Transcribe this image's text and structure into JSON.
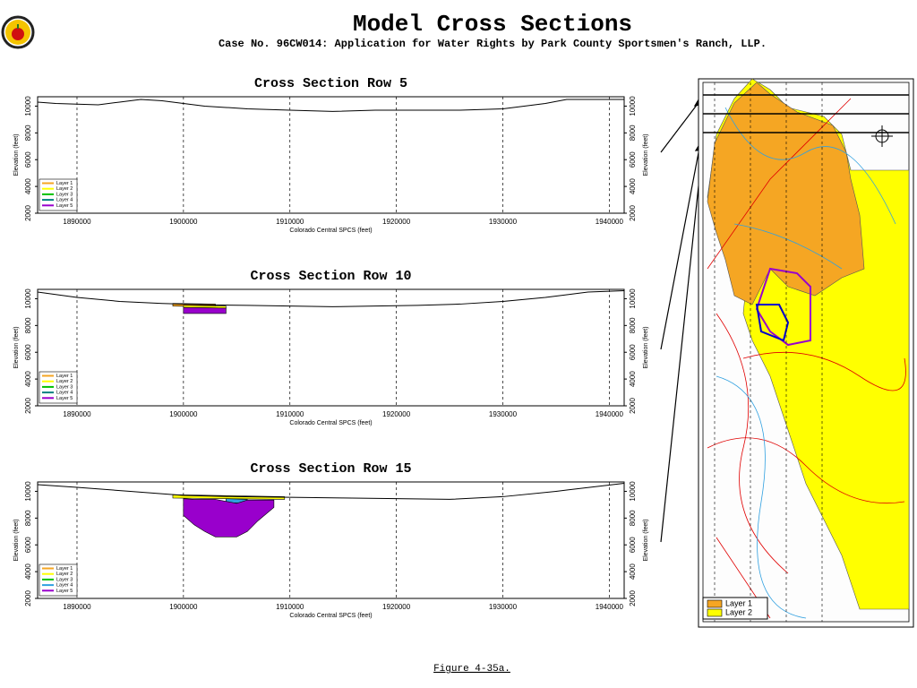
{
  "header": {
    "title": "Model Cross Sections",
    "subtitle": "Case No. 96CW014: Application for Water Rights by Park County Sportsmen's Ranch, LLP."
  },
  "footer": "Figure 4-35a.",
  "map": {
    "legend": [
      {
        "name": "Layer 1",
        "color": "#f5a623"
      },
      {
        "name": "Layer 2",
        "color": "#ffff00"
      }
    ]
  },
  "chart_data": [
    {
      "type": "area",
      "title": "Cross Section Row 5",
      "xlabel": "Colorado Central SPCS (feet)",
      "ylabel": "Elevation (feet)",
      "xlim": [
        1886300,
        1941400
      ],
      "ylim": [
        2000,
        10700
      ],
      "xticks": [
        1890000,
        1900000,
        1910000,
        1920000,
        1930000,
        1940000
      ],
      "yticks": [
        2000,
        4000,
        6000,
        8000,
        10000
      ],
      "grid": true,
      "surface": {
        "x": [
          1886300,
          1888000,
          1892000,
          1894000,
          1896000,
          1898000,
          1900000,
          1902000,
          1904000,
          1906000,
          1910000,
          1914000,
          1918000,
          1922000,
          1926000,
          1930000,
          1934000,
          1936000,
          1941400
        ],
        "values": [
          10300,
          10200,
          10100,
          10300,
          10500,
          10400,
          10200,
          10000,
          9900,
          9800,
          9700,
          9600,
          9700,
          9700,
          9700,
          9800,
          10200,
          10500,
          10500
        ]
      },
      "series": [
        {
          "name": "Layer 1",
          "color": "#f5a623"
        },
        {
          "name": "Layer 2",
          "color": "#ffff00"
        },
        {
          "name": "Layer 3",
          "color": "#00c000"
        },
        {
          "name": "Layer 4",
          "color": "#008080"
        },
        {
          "name": "Layer 5",
          "color": "#9900cc"
        }
      ]
    },
    {
      "type": "area",
      "title": "Cross Section Row 10",
      "xlabel": "Colorado Central SPCS (feet)",
      "ylabel": "Elevation (feet)",
      "xlim": [
        1886300,
        1941400
      ],
      "ylim": [
        2000,
        10700
      ],
      "xticks": [
        1890000,
        1900000,
        1910000,
        1920000,
        1930000,
        1940000
      ],
      "yticks": [
        2000,
        4000,
        6000,
        8000,
        10000
      ],
      "grid": true,
      "surface": {
        "x": [
          1886300,
          1890000,
          1894000,
          1898000,
          1902000,
          1906000,
          1910000,
          1914000,
          1918000,
          1922000,
          1926000,
          1930000,
          1934000,
          1938000,
          1941400
        ],
        "values": [
          10500,
          10100,
          9800,
          9650,
          9550,
          9500,
          9450,
          9400,
          9450,
          9500,
          9600,
          9800,
          10100,
          10500,
          10600
        ]
      },
      "series": [
        {
          "name": "Layer 1",
          "color": "#f5a623",
          "x": [
            1899000,
            1903000
          ],
          "top": [
            9650,
            9600
          ],
          "bottom": [
            9450,
            9400
          ]
        },
        {
          "name": "Layer 2",
          "color": "#ffff00",
          "x": [
            1900000,
            1904000
          ],
          "top": [
            9500,
            9450
          ],
          "bottom": [
            9350,
            9300
          ]
        },
        {
          "name": "Layer 3",
          "color": "#00c000"
        },
        {
          "name": "Layer 4",
          "color": "#008080"
        },
        {
          "name": "Layer 5",
          "color": "#9900cc",
          "x": [
            1900000,
            1904000
          ],
          "top": [
            9350,
            9300
          ],
          "bottom": [
            8900,
            8900
          ]
        }
      ]
    },
    {
      "type": "area",
      "title": "Cross Section Row 15",
      "xlabel": "Colorado Central SPCS (feet)",
      "ylabel": "Elevation (feet)",
      "xlim": [
        1886300,
        1941400
      ],
      "ylim": [
        2000,
        10700
      ],
      "xticks": [
        1890000,
        1900000,
        1910000,
        1920000,
        1930000,
        1940000
      ],
      "yticks": [
        2000,
        4000,
        6000,
        8000,
        10000
      ],
      "grid": true,
      "surface": {
        "x": [
          1886300,
          1890000,
          1895000,
          1900000,
          1905000,
          1910000,
          1915000,
          1920000,
          1925000,
          1930000,
          1935000,
          1941400
        ],
        "values": [
          10500,
          10300,
          10000,
          9700,
          9600,
          9550,
          9500,
          9450,
          9400,
          9600,
          10000,
          10600
        ]
      },
      "series": [
        {
          "name": "Layer 1",
          "color": "#f5a623"
        },
        {
          "name": "Layer 2",
          "color": "#ffff00",
          "x": [
            1899000,
            1909500
          ],
          "top": [
            9750,
            9600
          ],
          "bottom": [
            9500,
            9400
          ]
        },
        {
          "name": "Layer 3",
          "color": "#00c000"
        },
        {
          "name": "Layer 4",
          "color": "#30a0e0",
          "x": [
            1904000,
            1906000
          ],
          "top": [
            9450,
            9400
          ],
          "bottom": [
            9150,
            9100
          ]
        },
        {
          "name": "Layer 5",
          "color": "#9900cc",
          "x": [
            1900000,
            1901000,
            1902000,
            1903000,
            1905000,
            1906000,
            1907000,
            1908500
          ],
          "top": [
            9450,
            9400,
            9400,
            9400,
            9100,
            9350,
            9350,
            9350
          ],
          "bottom": [
            8200,
            7500,
            7000,
            6600,
            6600,
            7000,
            7800,
            8800
          ]
        }
      ]
    }
  ]
}
